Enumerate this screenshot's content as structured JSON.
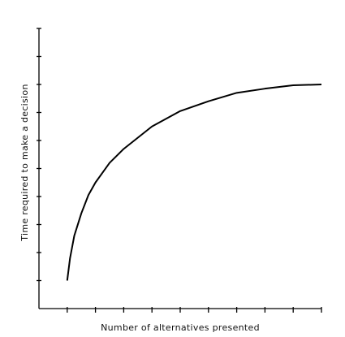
{
  "chart_data": {
    "type": "line",
    "x_label": "Number of alternatives presented",
    "y_label": "Time required to make a decision",
    "x": [
      1,
      1.1,
      1.25,
      1.5,
      1.75,
      2,
      2.5,
      3,
      4,
      5,
      6,
      7,
      8,
      9,
      10
    ],
    "values": [
      1.0,
      1.8,
      2.6,
      3.4,
      4.05,
      4.5,
      5.2,
      5.7,
      6.5,
      7.05,
      7.4,
      7.7,
      7.85,
      7.97,
      8.0
    ],
    "color": "#000000",
    "xlim": [
      0,
      10
    ],
    "ylim": [
      0,
      10
    ],
    "xticks": [
      1,
      2,
      3,
      4,
      5,
      6,
      7,
      8,
      9,
      10
    ],
    "yticks": [
      1,
      2,
      3,
      4,
      5,
      6,
      7,
      8,
      9,
      10
    ]
  }
}
